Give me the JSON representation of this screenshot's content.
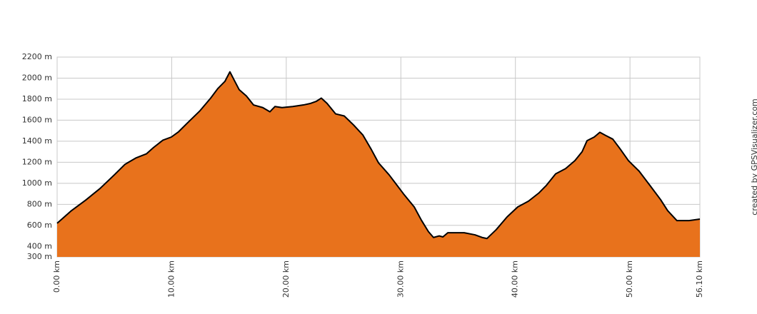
{
  "chart_data": {
    "type": "area",
    "credit": "created by GPSVisualizer.com",
    "color": "#e8721c",
    "line_color": "#000000",
    "grid": true,
    "x": [
      0,
      1.25,
      2.49,
      3.74,
      4.99,
      5.92,
      6.23,
      6.86,
      7.79,
      8.41,
      9.23,
      9.97,
      10.6,
      11.34,
      12.47,
      13.4,
      14.02,
      14.65,
      15.08,
      15.46,
      15.89,
      16.52,
      17.14,
      17.95,
      18.57,
      19.01,
      19.63,
      20.57,
      21.5,
      22.13,
      22.63,
      23.06,
      23.56,
      24.31,
      25.06,
      25.87,
      26.68,
      27.43,
      28.05,
      28.98,
      30.23,
      31.17,
      31.79,
      32.41,
      32.85,
      33.35,
      33.67,
      34.1,
      35.53,
      36.47,
      37.09,
      37.52,
      38.33,
      39.27,
      40.2,
      41.14,
      42.07,
      42.7,
      43.51,
      44.38,
      45.19,
      45.82,
      46.25,
      46.88,
      47.37,
      47.87,
      48.5,
      49.12,
      49.87,
      50.8,
      51.74,
      52.67,
      53.29,
      54.1,
      55.16,
      56.1
    ],
    "values": [
      620,
      740,
      840,
      950,
      1080,
      1180,
      1200,
      1240,
      1280,
      1340,
      1410,
      1440,
      1490,
      1570,
      1690,
      1810,
      1900,
      1970,
      2060,
      1980,
      1890,
      1830,
      1745,
      1720,
      1680,
      1730,
      1720,
      1730,
      1745,
      1760,
      1780,
      1810,
      1760,
      1660,
      1640,
      1555,
      1460,
      1320,
      1195,
      1080,
      900,
      775,
      650,
      540,
      485,
      500,
      490,
      530,
      530,
      510,
      485,
      475,
      560,
      680,
      775,
      830,
      910,
      980,
      1090,
      1140,
      1215,
      1300,
      1405,
      1440,
      1485,
      1455,
      1420,
      1330,
      1215,
      1115,
      980,
      845,
      740,
      645,
      645,
      660
    ],
    "xlim": [
      0,
      56.1
    ],
    "xticks": [
      {
        "value": 0,
        "label": "0.00 km"
      },
      {
        "value": 10,
        "label": "10.00 km"
      },
      {
        "value": 20,
        "label": "20.00 km"
      },
      {
        "value": 30,
        "label": "30.00 km"
      },
      {
        "value": 40,
        "label": "40.00 km"
      },
      {
        "value": 50,
        "label": "50.00 km"
      },
      {
        "value": 56.1,
        "label": "56.10 km"
      }
    ],
    "ylim": [
      300,
      2200
    ],
    "yticks": [
      {
        "value": 300,
        "label": "300 m"
      },
      {
        "value": 400,
        "label": "400 m"
      },
      {
        "value": 600,
        "label": "600 m"
      },
      {
        "value": 800,
        "label": "800 m"
      },
      {
        "value": 1000,
        "label": "1000 m"
      },
      {
        "value": 1200,
        "label": "1200 m"
      },
      {
        "value": 1400,
        "label": "1400 m"
      },
      {
        "value": 1600,
        "label": "1600 m"
      },
      {
        "value": 1800,
        "label": "1800 m"
      },
      {
        "value": 2000,
        "label": "2000 m"
      },
      {
        "value": 2200,
        "label": "2200 m"
      }
    ]
  }
}
